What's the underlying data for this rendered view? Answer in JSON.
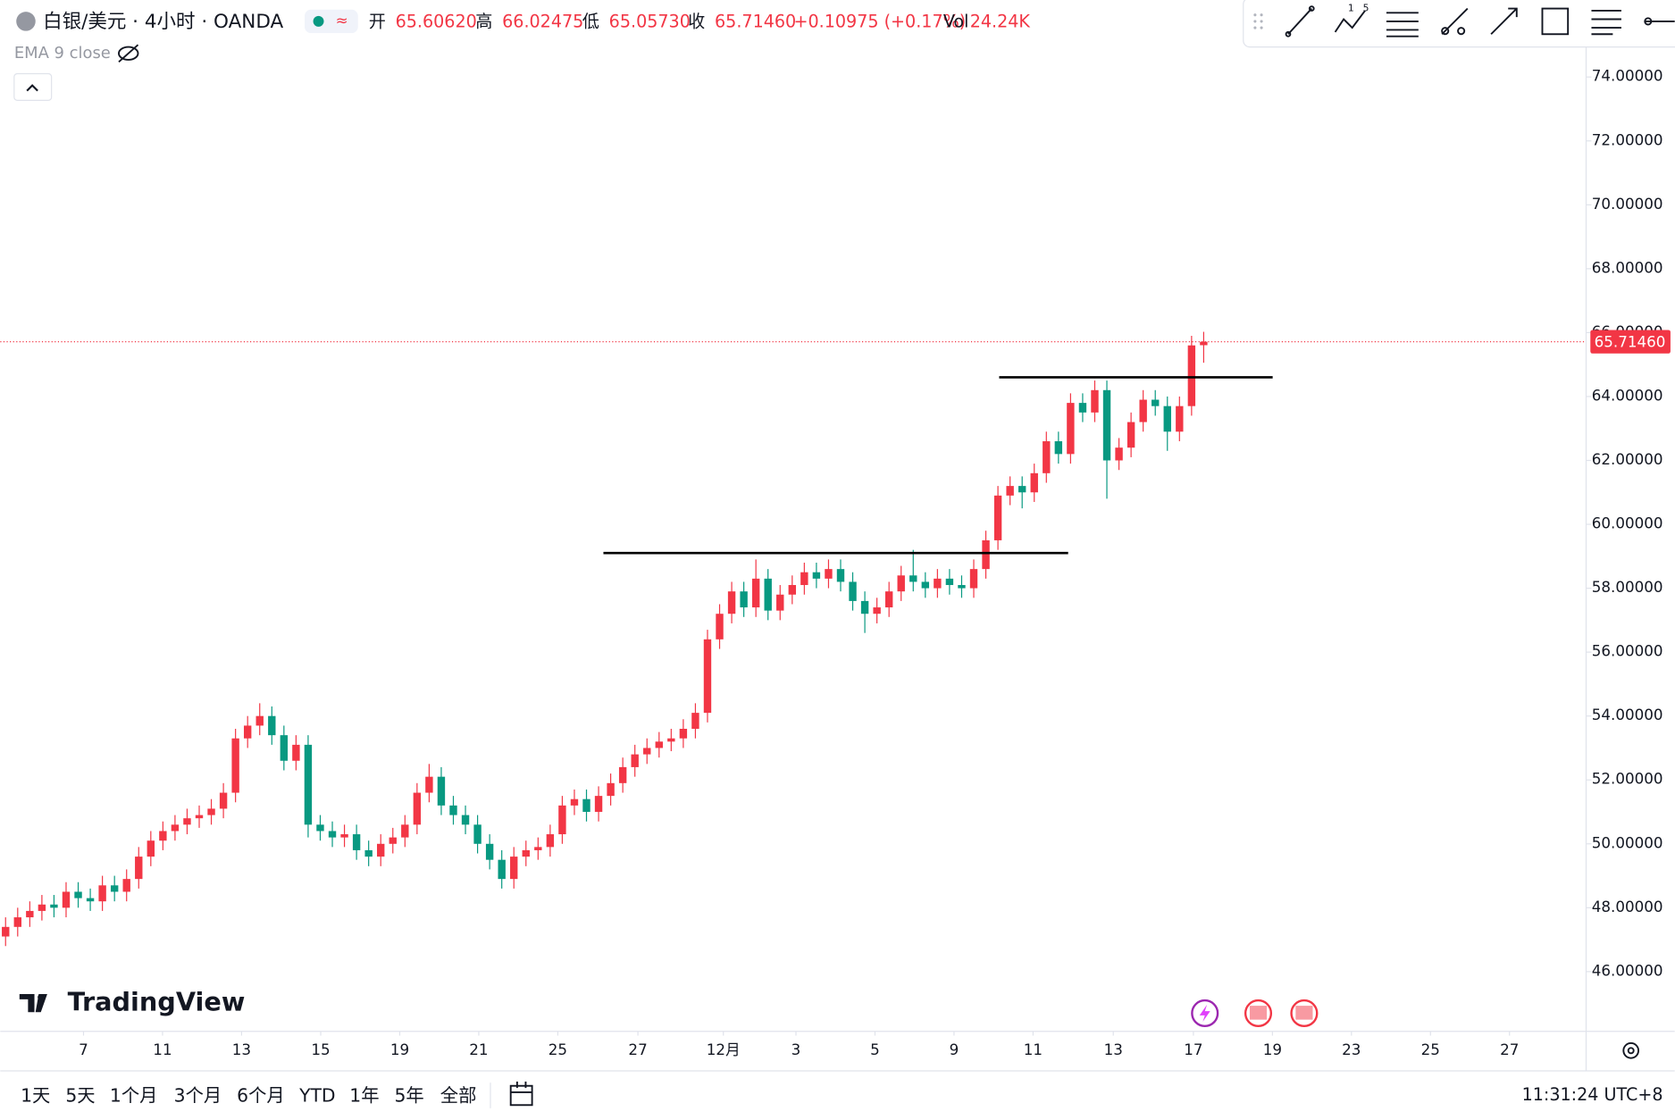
{
  "header": {
    "symbol": "白银/美元 · 4小时 · OANDA",
    "open_label": "开",
    "open": "65.60620",
    "high_label": "高",
    "high": "66.02475",
    "low_label": "低",
    "low": "65.05730",
    "close_label": "收",
    "close": "65.71460",
    "change": "+0.10975 (+0.17%)",
    "vol_label": "Vol",
    "vol": "24.24K",
    "indicator": "EMA 9 close"
  },
  "footer": {
    "periods": [
      "1天",
      "5天",
      "1个月",
      "3个月",
      "6个月",
      "YTD",
      "1年",
      "5年",
      "全部"
    ],
    "clock": "11:31:24 UTC+8",
    "brand": "TradingView"
  },
  "chart_data": {
    "type": "candlestick",
    "up_color": "#f23645",
    "down_color": "#089981",
    "xlim": [
      -0.44,
      130.6
    ],
    "xticks": [
      {
        "value": 6.44,
        "label": "7"
      },
      {
        "value": 12.97,
        "label": "11"
      },
      {
        "value": 19.5,
        "label": "13"
      },
      {
        "value": 26.04,
        "label": "15"
      },
      {
        "value": 32.57,
        "label": "19"
      },
      {
        "value": 39.1,
        "label": "21"
      },
      {
        "value": 45.63,
        "label": "25"
      },
      {
        "value": 52.25,
        "label": "27"
      },
      {
        "value": 59.31,
        "label": "12月"
      },
      {
        "value": 65.31,
        "label": "3"
      },
      {
        "value": 71.84,
        "label": "5"
      },
      {
        "value": 78.37,
        "label": "9"
      },
      {
        "value": 84.9,
        "label": "11"
      },
      {
        "value": 91.53,
        "label": "13"
      },
      {
        "value": 98.15,
        "label": "17"
      },
      {
        "value": 104.68,
        "label": "19"
      },
      {
        "value": 111.21,
        "label": "23"
      },
      {
        "value": 117.74,
        "label": "25"
      },
      {
        "value": 124.27,
        "label": "27"
      }
    ],
    "ylim": [
      44.13,
      76.41
    ],
    "yticks": [
      {
        "value": 46,
        "label": "46.00000"
      },
      {
        "value": 48,
        "label": "48.00000"
      },
      {
        "value": 50,
        "label": "50.00000"
      },
      {
        "value": 52,
        "label": "52.00000"
      },
      {
        "value": 54,
        "label": "54.00000"
      },
      {
        "value": 56,
        "label": "56.00000"
      },
      {
        "value": 58,
        "label": "58.00000"
      },
      {
        "value": 60,
        "label": "60.00000"
      },
      {
        "value": 62,
        "label": "62.00000"
      },
      {
        "value": 64,
        "label": "64.00000"
      },
      {
        "value": 66,
        "label": "66.00000"
      },
      {
        "value": 68,
        "label": "68.00000"
      },
      {
        "value": 70,
        "label": "70.00000"
      },
      {
        "value": 72,
        "label": "72.00000"
      },
      {
        "value": 74,
        "label": "74.00000"
      }
    ],
    "last_price": {
      "value": 65.7146,
      "label": "65.71460"
    },
    "lines": [
      {
        "value": 59.1,
        "x": [
          49.4,
          87.8
        ]
      },
      {
        "value": 64.6,
        "x": [
          82.1,
          104.7
        ]
      }
    ],
    "open": [
      47.1,
      47.4,
      47.7,
      47.9,
      48.1,
      48.0,
      48.5,
      48.3,
      48.2,
      48.7,
      48.5,
      48.9,
      49.6,
      50.1,
      50.4,
      50.6,
      50.8,
      50.9,
      51.1,
      51.6,
      53.3,
      53.7,
      54.0,
      53.4,
      52.6,
      53.1,
      50.6,
      50.4,
      50.2,
      50.3,
      49.8,
      49.6,
      50.0,
      50.2,
      50.6,
      51.6,
      52.1,
      51.2,
      50.9,
      50.6,
      50.0,
      49.5,
      48.9,
      49.6,
      49.8,
      49.9,
      50.3,
      51.2,
      51.4,
      51.0,
      51.5,
      51.9,
      52.4,
      52.8,
      53.0,
      53.2,
      53.3,
      53.6,
      54.1,
      56.4,
      57.2,
      57.9,
      57.4,
      58.3,
      57.3,
      57.8,
      58.1,
      58.5,
      58.3,
      58.6,
      58.2,
      57.6,
      57.2,
      57.4,
      57.9,
      58.4,
      58.2,
      58.0,
      58.3,
      58.1,
      58.0,
      58.6,
      59.5,
      60.9,
      61.2,
      61.0,
      61.6,
      62.6,
      62.2,
      63.8,
      63.5,
      64.2,
      62.0,
      62.4,
      63.2,
      63.9,
      63.7,
      62.9,
      63.7,
      65.6062
    ],
    "high": [
      47.7,
      48.0,
      48.2,
      48.4,
      48.4,
      48.8,
      48.8,
      48.6,
      49.0,
      49.0,
      49.2,
      49.9,
      50.4,
      50.7,
      50.9,
      51.1,
      51.2,
      51.4,
      51.9,
      53.6,
      54.0,
      54.4,
      54.3,
      53.7,
      53.4,
      53.4,
      50.9,
      50.7,
      50.6,
      50.6,
      50.1,
      50.3,
      50.5,
      50.9,
      51.9,
      52.5,
      52.4,
      51.5,
      51.2,
      50.9,
      50.3,
      49.8,
      49.9,
      50.1,
      50.2,
      50.6,
      51.5,
      51.7,
      51.7,
      51.8,
      52.2,
      52.7,
      53.1,
      53.3,
      53.5,
      53.6,
      53.9,
      54.4,
      56.7,
      57.5,
      58.2,
      58.2,
      58.9,
      58.6,
      58.1,
      58.4,
      58.8,
      58.8,
      58.9,
      58.9,
      58.5,
      57.9,
      57.7,
      58.2,
      58.7,
      59.2,
      58.5,
      58.6,
      58.6,
      58.4,
      58.9,
      59.8,
      61.2,
      61.5,
      61.5,
      61.9,
      62.9,
      62.9,
      64.1,
      64.1,
      64.5,
      64.5,
      62.7,
      63.5,
      64.2,
      64.2,
      64.0,
      64.0,
      65.9,
      66.02475
    ],
    "low": [
      46.8,
      47.1,
      47.4,
      47.6,
      47.7,
      47.7,
      48.0,
      47.9,
      47.9,
      48.2,
      48.2,
      48.6,
      49.3,
      49.8,
      50.1,
      50.3,
      50.5,
      50.6,
      50.8,
      51.3,
      53.0,
      53.4,
      53.1,
      52.3,
      52.3,
      50.2,
      50.1,
      49.9,
      49.9,
      49.5,
      49.3,
      49.3,
      49.7,
      49.9,
      50.3,
      51.3,
      50.9,
      50.6,
      50.3,
      49.7,
      49.2,
      48.6,
      48.6,
      49.3,
      49.5,
      49.6,
      50.0,
      50.9,
      50.7,
      50.7,
      51.2,
      51.6,
      52.1,
      52.5,
      52.7,
      52.9,
      53.0,
      53.3,
      53.8,
      56.1,
      56.9,
      57.1,
      57.1,
      57.0,
      57.0,
      57.5,
      57.8,
      58.0,
      58.0,
      57.9,
      57.3,
      56.6,
      56.9,
      57.1,
      57.6,
      57.9,
      57.7,
      57.7,
      57.8,
      57.7,
      57.7,
      58.3,
      59.2,
      60.6,
      60.5,
      60.7,
      61.3,
      61.9,
      61.9,
      63.2,
      63.2,
      60.8,
      61.7,
      62.1,
      62.9,
      63.4,
      62.3,
      62.6,
      63.4,
      65.0573
    ],
    "close": [
      47.4,
      47.7,
      47.9,
      48.1,
      48.0,
      48.5,
      48.3,
      48.2,
      48.7,
      48.5,
      48.9,
      49.6,
      50.1,
      50.4,
      50.6,
      50.8,
      50.9,
      51.1,
      51.6,
      53.3,
      53.7,
      54.0,
      53.4,
      52.6,
      53.1,
      50.6,
      50.4,
      50.2,
      50.3,
      49.8,
      49.6,
      50.0,
      50.2,
      50.6,
      51.6,
      52.1,
      51.2,
      50.9,
      50.6,
      50.0,
      49.5,
      48.9,
      49.6,
      49.8,
      49.9,
      50.3,
      51.2,
      51.4,
      51.0,
      51.5,
      51.9,
      52.4,
      52.8,
      53.0,
      53.2,
      53.3,
      53.6,
      54.1,
      56.4,
      57.2,
      57.9,
      57.4,
      58.3,
      57.3,
      57.8,
      58.1,
      58.5,
      58.3,
      58.6,
      58.2,
      57.6,
      57.2,
      57.4,
      57.9,
      58.4,
      58.2,
      58.0,
      58.3,
      58.1,
      58.0,
      58.6,
      59.5,
      60.9,
      61.2,
      61.0,
      61.6,
      62.6,
      62.2,
      63.8,
      63.5,
      64.2,
      62.0,
      62.4,
      63.2,
      63.9,
      63.7,
      62.9,
      63.7,
      65.6,
      65.7146
    ]
  }
}
